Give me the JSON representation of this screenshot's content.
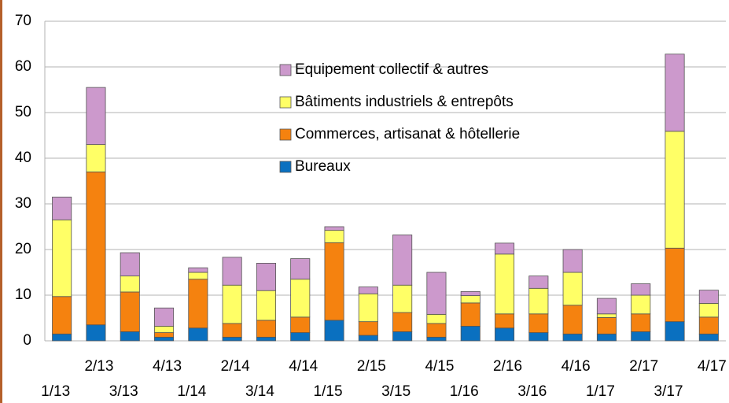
{
  "chart_data": {
    "type": "bar",
    "stacked": true,
    "categories": [
      "1/13",
      "2/13",
      "3/13",
      "4/13",
      "1/14",
      "2/14",
      "3/14",
      "4/14",
      "1/15",
      "2/15",
      "3/15",
      "4/15",
      "1/16",
      "2/16",
      "3/16",
      "4/16",
      "1/17",
      "2/17",
      "3/17",
      "4/17"
    ],
    "series": [
      {
        "name": "Bureaux",
        "color": "#0a70c0",
        "values": [
          1.5,
          3.5,
          2,
          0.8,
          2.8,
          0.8,
          0.8,
          1.8,
          4.5,
          1.2,
          2,
          0.8,
          3.2,
          2.8,
          1.8,
          1.5,
          1.5,
          2,
          4.2,
          1.5
        ]
      },
      {
        "name": "Commerces, artisanat & hôtellerie",
        "color": "#f5820f",
        "values": [
          8.2,
          33.5,
          8.7,
          1,
          10.7,
          3,
          3.7,
          3.4,
          17,
          3,
          4.2,
          3,
          5.1,
          3.1,
          4.1,
          6.3,
          3.6,
          3.9,
          16.1,
          3.7
        ]
      },
      {
        "name": "Bâtiments  industriels & entrepôts",
        "color": "#ffff66",
        "values": [
          16.8,
          6,
          3.5,
          1.4,
          1.5,
          8.4,
          6.5,
          8.3,
          2.7,
          6.1,
          6,
          2,
          1.6,
          13.1,
          5.6,
          7.2,
          0.8,
          4.1,
          25.6,
          3
        ]
      },
      {
        "name": "Equipement collectif & autres",
        "color": "#cc99cc",
        "values": [
          5,
          12.5,
          5.1,
          4,
          1,
          6.1,
          6,
          4.5,
          0.8,
          1.5,
          11,
          9.2,
          0.9,
          2.4,
          2.7,
          5,
          3.4,
          2.5,
          16.9,
          2.9
        ]
      }
    ],
    "ylim": [
      0,
      70
    ],
    "yticks": [
      0,
      10,
      20,
      30,
      40,
      50,
      60,
      70
    ],
    "grid": true,
    "legend": "top"
  }
}
